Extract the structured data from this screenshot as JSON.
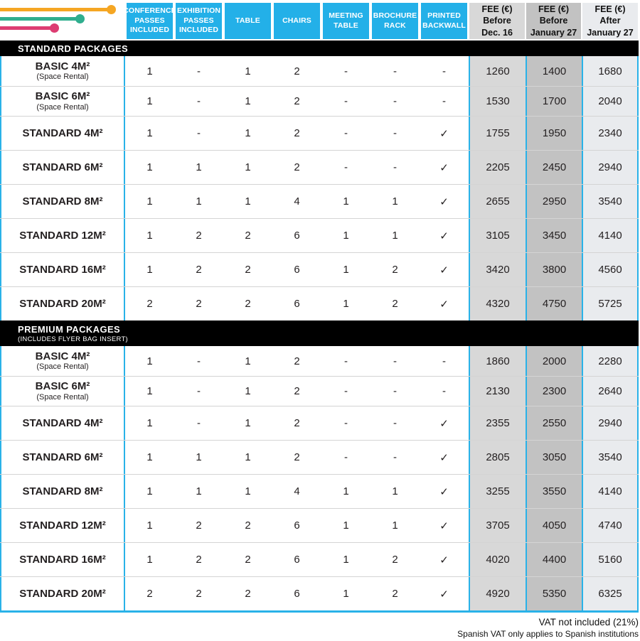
{
  "page": {
    "footer_line1": "VAT not included (21%)",
    "footer_line2": "Spanish VAT only applies to Spanish institutions"
  },
  "header": {
    "amenity_columns": [
      "CONFERENCE PASSES INCLUDED",
      "EXHIBITION PASSES INCLUDED",
      "TABLE",
      "CHAIRS",
      "MEETING TABLE",
      "BROCHURE RACK",
      "PRINTED BACKWALL"
    ],
    "fee_columns": [
      "FEE (€)\nBefore\nDec. 16",
      "FEE (€)\nBefore\nJanuary 27",
      "FEE (€)\nAfter\nJanuary 27"
    ]
  },
  "sections": [
    {
      "title": "STANDARD PACKAGES",
      "subtitle": "",
      "rows": [
        {
          "name": "BASIC 4M²",
          "note": "(Space Rental)",
          "values": [
            "1",
            "-",
            "1",
            "2",
            "-",
            "-",
            "-"
          ],
          "fees": [
            "1260",
            "1400",
            "1680"
          ]
        },
        {
          "name": "BASIC 6M²",
          "note": "(Space Rental)",
          "values": [
            "1",
            "-",
            "1",
            "2",
            "-",
            "-",
            "-"
          ],
          "fees": [
            "1530",
            "1700",
            "2040"
          ]
        },
        {
          "name": "STANDARD 4M²",
          "note": "",
          "values": [
            "1",
            "-",
            "1",
            "2",
            "-",
            "-",
            "✓"
          ],
          "fees": [
            "1755",
            "1950",
            "2340"
          ]
        },
        {
          "name": "STANDARD 6M²",
          "note": "",
          "values": [
            "1",
            "1",
            "1",
            "2",
            "-",
            "-",
            "✓"
          ],
          "fees": [
            "2205",
            "2450",
            "2940"
          ]
        },
        {
          "name": "STANDARD 8M²",
          "note": "",
          "values": [
            "1",
            "1",
            "1",
            "4",
            "1",
            "1",
            "✓"
          ],
          "fees": [
            "2655",
            "2950",
            "3540"
          ]
        },
        {
          "name": "STANDARD 12M²",
          "note": "",
          "values": [
            "1",
            "2",
            "2",
            "6",
            "1",
            "1",
            "✓"
          ],
          "fees": [
            "3105",
            "3450",
            "4140"
          ]
        },
        {
          "name": "STANDARD 16M²",
          "note": "",
          "values": [
            "1",
            "2",
            "2",
            "6",
            "1",
            "2",
            "✓"
          ],
          "fees": [
            "3420",
            "3800",
            "4560"
          ]
        },
        {
          "name": "STANDARD 20M²",
          "note": "",
          "values": [
            "2",
            "2",
            "2",
            "6",
            "1",
            "2",
            "✓"
          ],
          "fees": [
            "4320",
            "4750",
            "5725"
          ]
        }
      ]
    },
    {
      "title": "PREMIUM PACKAGES",
      "subtitle": "(INCLUDES FLYER BAG INSERT)",
      "rows": [
        {
          "name": "BASIC 4M²",
          "note": "(Space Rental)",
          "values": [
            "1",
            "-",
            "1",
            "2",
            "-",
            "-",
            "-"
          ],
          "fees": [
            "1860",
            "2000",
            "2280"
          ]
        },
        {
          "name": "BASIC 6M²",
          "note": "(Space Rental)",
          "values": [
            "1",
            "-",
            "1",
            "2",
            "-",
            "-",
            "-"
          ],
          "fees": [
            "2130",
            "2300",
            "2640"
          ]
        },
        {
          "name": "STANDARD 4M²",
          "note": "",
          "values": [
            "1",
            "-",
            "1",
            "2",
            "-",
            "-",
            "✓"
          ],
          "fees": [
            "2355",
            "2550",
            "2940"
          ]
        },
        {
          "name": "STANDARD 6M²",
          "note": "",
          "values": [
            "1",
            "1",
            "1",
            "2",
            "-",
            "-",
            "✓"
          ],
          "fees": [
            "2805",
            "3050",
            "3540"
          ]
        },
        {
          "name": "STANDARD 8M²",
          "note": "",
          "values": [
            "1",
            "1",
            "1",
            "4",
            "1",
            "1",
            "✓"
          ],
          "fees": [
            "3255",
            "3550",
            "4140"
          ]
        },
        {
          "name": "STANDARD 12M²",
          "note": "",
          "values": [
            "1",
            "2",
            "2",
            "6",
            "1",
            "1",
            "✓"
          ],
          "fees": [
            "3705",
            "4050",
            "4740"
          ]
        },
        {
          "name": "STANDARD 16M²",
          "note": "",
          "values": [
            "1",
            "2",
            "2",
            "6",
            "1",
            "2",
            "✓"
          ],
          "fees": [
            "4020",
            "4400",
            "5160"
          ]
        },
        {
          "name": "STANDARD 20M²",
          "note": "",
          "values": [
            "2",
            "2",
            "2",
            "6",
            "1",
            "2",
            "✓"
          ],
          "fees": [
            "4920",
            "5350",
            "6325"
          ]
        }
      ]
    }
  ],
  "colors": {
    "header_blue": "#23b0e8",
    "border_cyan": "#29b2e8",
    "fee_col1_bg": "#d8d8d8",
    "fee_col2_bg": "#c2c2c2",
    "fee_col3_bg": "#e9ebee",
    "band_bg": "#000000",
    "deco_orange": "#f5a623",
    "deco_teal": "#2fae8e",
    "deco_pink": "#dd3d72"
  }
}
